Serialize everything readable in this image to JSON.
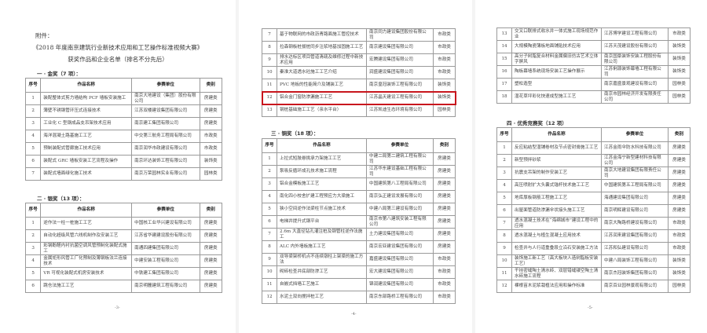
{
  "headers": [
    "序号",
    "作品名称",
    "参赛单位",
    "类别"
  ],
  "page1": {
    "attachment": "附件：",
    "title": "《2018 年度南京建筑行业新技术应用和工艺操作标准视频大赛》",
    "subtitle": "获奖作品和企业名单（排名不分先后）",
    "gold_heading": "一 · 金奖（7 项）：",
    "gold_rows": [
      [
        "1",
        "装配整体式剪力墙结构 PCF 墙板安装施工",
        "南京大地建设（集团）股份有限公司",
        "房建类"
      ],
      [
        "2",
        "薄壁不锈钢管环压式连接技术",
        "江苏双楼建设集团有限公司",
        "房建类"
      ],
      [
        "3",
        "工业化 C 型钢成品支吊架技术应用",
        "南京建工集团有限公司",
        "房建类"
      ],
      [
        "4",
        "海洋混凝土路基施工工艺",
        "中交第三航务工程局有限公司",
        "市政类"
      ],
      [
        "5",
        "预制装配式管廊施工技术应用",
        "南京润华市政建设有限公司",
        "市政类"
      ],
      [
        "6",
        "装配式 GRC 墙板安装工艺流程及操作",
        "南京环达装饰工程有限公司",
        "装饰类"
      ],
      [
        "7",
        "装配式墙面绿化施工技术",
        "南京万荣园林实业有限公司",
        "园林类"
      ]
    ],
    "silver_heading": "二 · 银奖（13 项）：",
    "silver_rows": [
      [
        "1",
        "逆作法一柱一桩施工工艺",
        "中国核工业华兴建设有限公司",
        "房建类"
      ],
      [
        "2",
        "自动化超级风管六线机制作及安装工艺",
        "江苏省华建建设股份有限公司",
        "房建类"
      ],
      [
        "3",
        "彩钢酚醛内衬抗菌空调风管预制化装配式施工",
        "南通四建集团有限公司",
        "房建类"
      ],
      [
        "4",
        "金属矩形风管工厂化预制及薄钢板法兰连接技术",
        "中建安装工程有限公司",
        "房建类"
      ],
      [
        "5",
        "VR 可视化装配式机房安装技术",
        "中铁建工集团有限公司",
        "房建类"
      ],
      [
        "6",
        "跳仓法施工工艺",
        "南京明麓建筑工程有限公司",
        "房建类"
      ]
    ],
    "page_number": "-3-"
  },
  "page2": {
    "silver_rows_cont": [
      [
        "7",
        "基于物联网的市政沥青路面施工管控技术",
        "南京同力建设集团股份有限公司",
        "市政类"
      ],
      [
        "8",
        "拉森钢板桩拔桩同步注浆地基加固施工工艺",
        "南京建设集团有限公司",
        "市政类"
      ],
      [
        "9",
        "排水达标区项目管道清疏及维修过程中新技术应用",
        "宏腾建设集团有限公司",
        "市政类"
      ],
      [
        "10",
        "秦淮大道透水砼施工工艺介绍",
        "润盛建设集团有限公司",
        "市政类"
      ],
      [
        "11",
        "PVC 地板的性能简介及铺装工艺",
        "南京皇冠装饰工程有限公司",
        "装饰类"
      ],
      [
        "12",
        "铝合金门窗防渗漏施工工艺",
        "江苏晶天建设工程有限公司",
        "装饰类"
      ],
      [
        "13",
        "钢桩基础施工工艺（亲水平台）",
        "江苏凯迪生态环境有限公司",
        "园林类"
      ]
    ],
    "highlight_color": "#c8161d",
    "bronze_heading": "三 · 铜奖（18 项）：",
    "bronze_rows": [
      [
        "1",
        "上拉式短肢悬挑承力架施工工艺",
        "中建二局第二建筑工程有限公司",
        "房建类"
      ],
      [
        "2",
        "泵吸反循环成孔技术施工流程",
        "江苏华东建设基础工程有限公司",
        "房建类"
      ],
      [
        "3",
        "铝合金模板施工工艺",
        "中国建筑第八工程局有限公司",
        "房建类"
      ],
      [
        "4",
        "南化四小校舍扩建工程预应力大梁施工",
        "南京弘正建设发展有限公司",
        "房建类"
      ],
      [
        "5",
        "狭小空间逆作法梁柱节点施工技术",
        "中建八局第三建设有限公司",
        "房建类"
      ],
      [
        "6",
        "电梯井提升式钢平台",
        "南京市第八建筑安装工程有限公司",
        "房建类"
      ],
      [
        "7",
        "2.6m 大直径钻孔灌注桩及钢管柱逆作法施工",
        "土力建设集团有限公司",
        "房建类"
      ],
      [
        "8",
        "ALC 内外墙板施工工艺",
        "南京宏亚建设集团有限公司",
        "房建类"
      ],
      [
        "9",
        "双导梁架桥机点不连续墩柱上架梁的施工方法",
        "嘉盛建设集团有限公司",
        "市政类"
      ],
      [
        "10",
        "砌砖检查井底部防渗工艺",
        "宏大建设集团有限公司",
        "市政类"
      ],
      [
        "11",
        "自嵌式挡墙工艺施工",
        "锦润建设集团有限公司",
        "市政类"
      ],
      [
        "12",
        "水泥土双向搅拌桩工艺",
        "南京东部路桥工程有限公司",
        "市政类"
      ]
    ],
    "page_number": "-4-"
  },
  "page3": {
    "bronze_rows_cont": [
      [
        "13",
        "交叉口联排式收水井一体式施工现场规范作业",
        "江苏博学建设工程有限公司",
        "市政类"
      ],
      [
        "14",
        "大规模陶瓷薄板地面铺贴技术应用",
        "江苏天茂建设股份有限公司",
        "装饰类"
      ],
      [
        "15",
        "高分子树脂复合材料金属偏旧仿古艺术立体字屏风",
        "南京国豪装饰安装工程股份有限公司",
        "装饰类"
      ],
      [
        "16",
        "陶板幕墙系统现场安装工艺操作展示",
        "江苏俐源装饰幕墙工程有限公司",
        "装饰类"
      ],
      [
        "17",
        "塑松造型",
        "南京嘉盛景观建设有限公司",
        "园林类"
      ],
      [
        "18",
        "湿花草坪彩化快速成型施工工艺",
        "南京市园林经济开发有限责任公司",
        "园林类"
      ]
    ],
    "excellence_heading": "四 · 优秀竞赛奖（12 项）",
    "excellence_rows": [
      [
        "1",
        "反应粘结型湿铺卷材及节点密封膏施工工艺",
        "江苏金雨伞防水科技有限公司",
        "房建类"
      ],
      [
        "2",
        "新型预拌砂浆",
        "江苏金海宁新型建材科技有限公司",
        "房建类"
      ],
      [
        "3",
        "抗震支吊架的制作安装工艺",
        "南京大地建设集团有限责任公司",
        "房建类"
      ],
      [
        "4",
        "高压喷射扩大头囊式锚杆技术施工工艺",
        "中国建筑第五工程局有限公司",
        "房建类"
      ],
      [
        "5",
        "地库厚板钢筋工程施工工艺",
        "海通建设集团有限公司",
        "房建类"
      ],
      [
        "6",
        "出屋面管道防渗漏伞状接头施工工艺",
        "南京明辉建设有限公司",
        "房建类"
      ],
      [
        "7",
        "透水混凝土技术在“海绵城市”建设工程中的应用",
        "南京大陶路桥建设有限公司",
        "市政类"
      ],
      [
        "8",
        "透水混凝土与植生混凝土应用技术",
        "江苏润来建设集团有限公司",
        "市政类"
      ],
      [
        "9",
        "检查井与人行道重叠段立沿石安装施工方法",
        "江苏和弘建设有限公司",
        "市政类"
      ],
      [
        "10",
        "装饰施工新工艺（高大板块人造树脂板安装工艺）",
        "中建八局装饰工程有限公司",
        "装饰类"
      ],
      [
        "11",
        "干挂密缝陶土清水砖、双层错缝镂空陶土清水砖施工流程",
        "南京杰冠装饰集团有限公司",
        "装饰类"
      ],
      [
        "12",
        "裸根苗木泥浆栽植法应用和操作标准",
        "南京百业园林景观有限公司",
        "园林类"
      ]
    ],
    "page_number": "-5-"
  }
}
